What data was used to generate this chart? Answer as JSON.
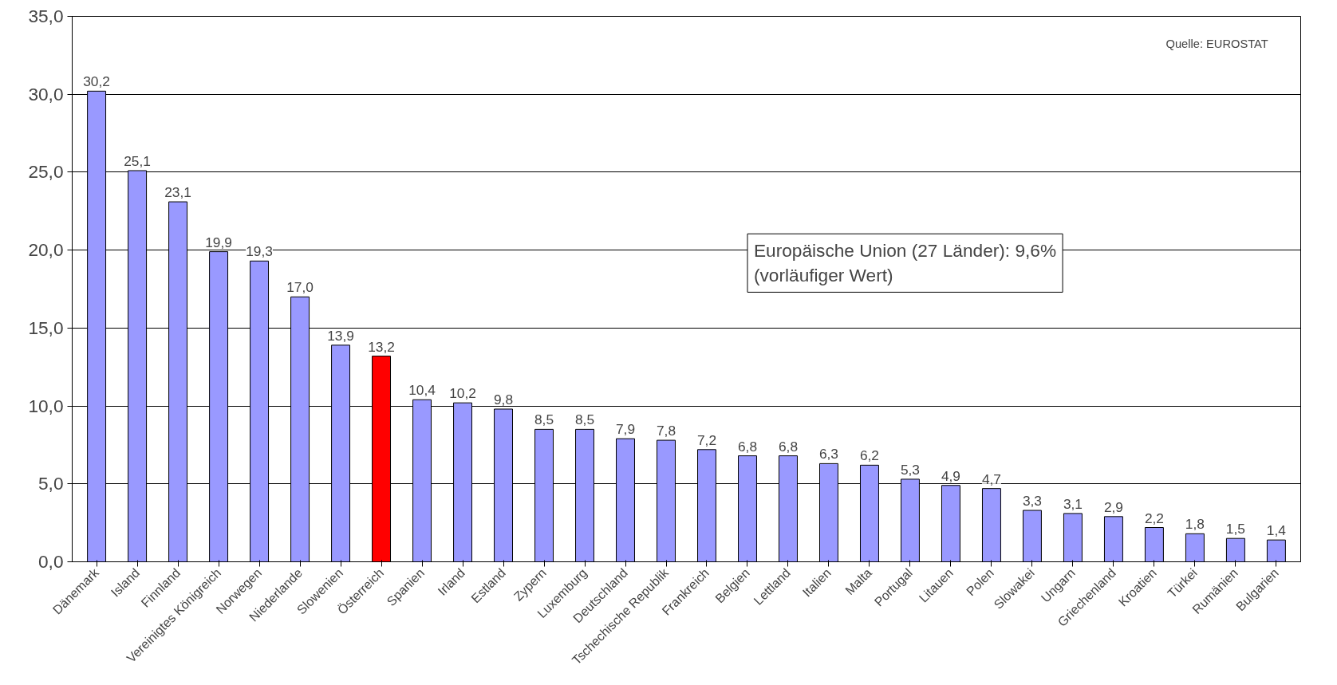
{
  "chart_data": {
    "type": "bar",
    "categories": [
      "Dänemark",
      "Island",
      "Finnland",
      "Vereinigtes Königreich",
      "Norwegen",
      "Niederlande",
      "Slowenien",
      "Österreich",
      "Spanien",
      "Irland",
      "Estland",
      "Zypern",
      "Luxemburg",
      "Deutschland",
      "Tschechische Republik",
      "Frankreich",
      "Belgien",
      "Lettland",
      "Italien",
      "Malta",
      "Portugal",
      "Litauen",
      "Polen",
      "Slowakei",
      "Ungarn",
      "Griechenland",
      "Kroatien",
      "Türkei",
      "Rumänien",
      "Bulgarien"
    ],
    "values": [
      30.2,
      25.1,
      23.1,
      19.9,
      19.3,
      17.0,
      13.9,
      13.2,
      10.4,
      10.2,
      9.8,
      8.5,
      8.5,
      7.9,
      7.8,
      7.2,
      6.8,
      6.8,
      6.3,
      6.2,
      5.3,
      4.9,
      4.7,
      3.3,
      3.1,
      2.9,
      2.2,
      1.8,
      1.5,
      1.4
    ],
    "colors": [
      "#9999ff",
      "#9999ff",
      "#9999ff",
      "#9999ff",
      "#9999ff",
      "#9999ff",
      "#9999ff",
      "#ff0000",
      "#9999ff",
      "#9999ff",
      "#9999ff",
      "#9999ff",
      "#9999ff",
      "#9999ff",
      "#9999ff",
      "#9999ff",
      "#9999ff",
      "#9999ff",
      "#9999ff",
      "#9999ff",
      "#9999ff",
      "#9999ff",
      "#9999ff",
      "#9999ff",
      "#9999ff",
      "#9999ff",
      "#9999ff",
      "#9999ff",
      "#9999ff",
      "#9999ff"
    ],
    "value_labels": [
      "30,2",
      "25,1",
      "23,1",
      "19,9",
      "19,3",
      "17,0",
      "13,9",
      "13,2",
      "10,4",
      "10,2",
      "9,8",
      "8,5",
      "8,5",
      "7,9",
      "7,8",
      "7,2",
      "6,8",
      "6,8",
      "6,3",
      "6,2",
      "5,3",
      "4,9",
      "4,7",
      "3,3",
      "3,1",
      "2,9",
      "2,2",
      "1,8",
      "1,5",
      "1,4"
    ],
    "ylim": [
      0,
      35
    ],
    "yticks": [
      {
        "value": 0,
        "label": "0,0"
      },
      {
        "value": 5,
        "label": "5,0"
      },
      {
        "value": 10,
        "label": "10,0"
      },
      {
        "value": 15,
        "label": "15,0"
      },
      {
        "value": 20,
        "label": "20,0"
      },
      {
        "value": 25,
        "label": "25,0"
      },
      {
        "value": 30,
        "label": "30,0"
      },
      {
        "value": 35,
        "label": "35,0"
      }
    ],
    "grid": "y",
    "annotations": [
      "Quelle: EUROSTAT",
      "Europäische Union (27 Länder): 9,6%\n(vorläufiger Wert)"
    ]
  }
}
